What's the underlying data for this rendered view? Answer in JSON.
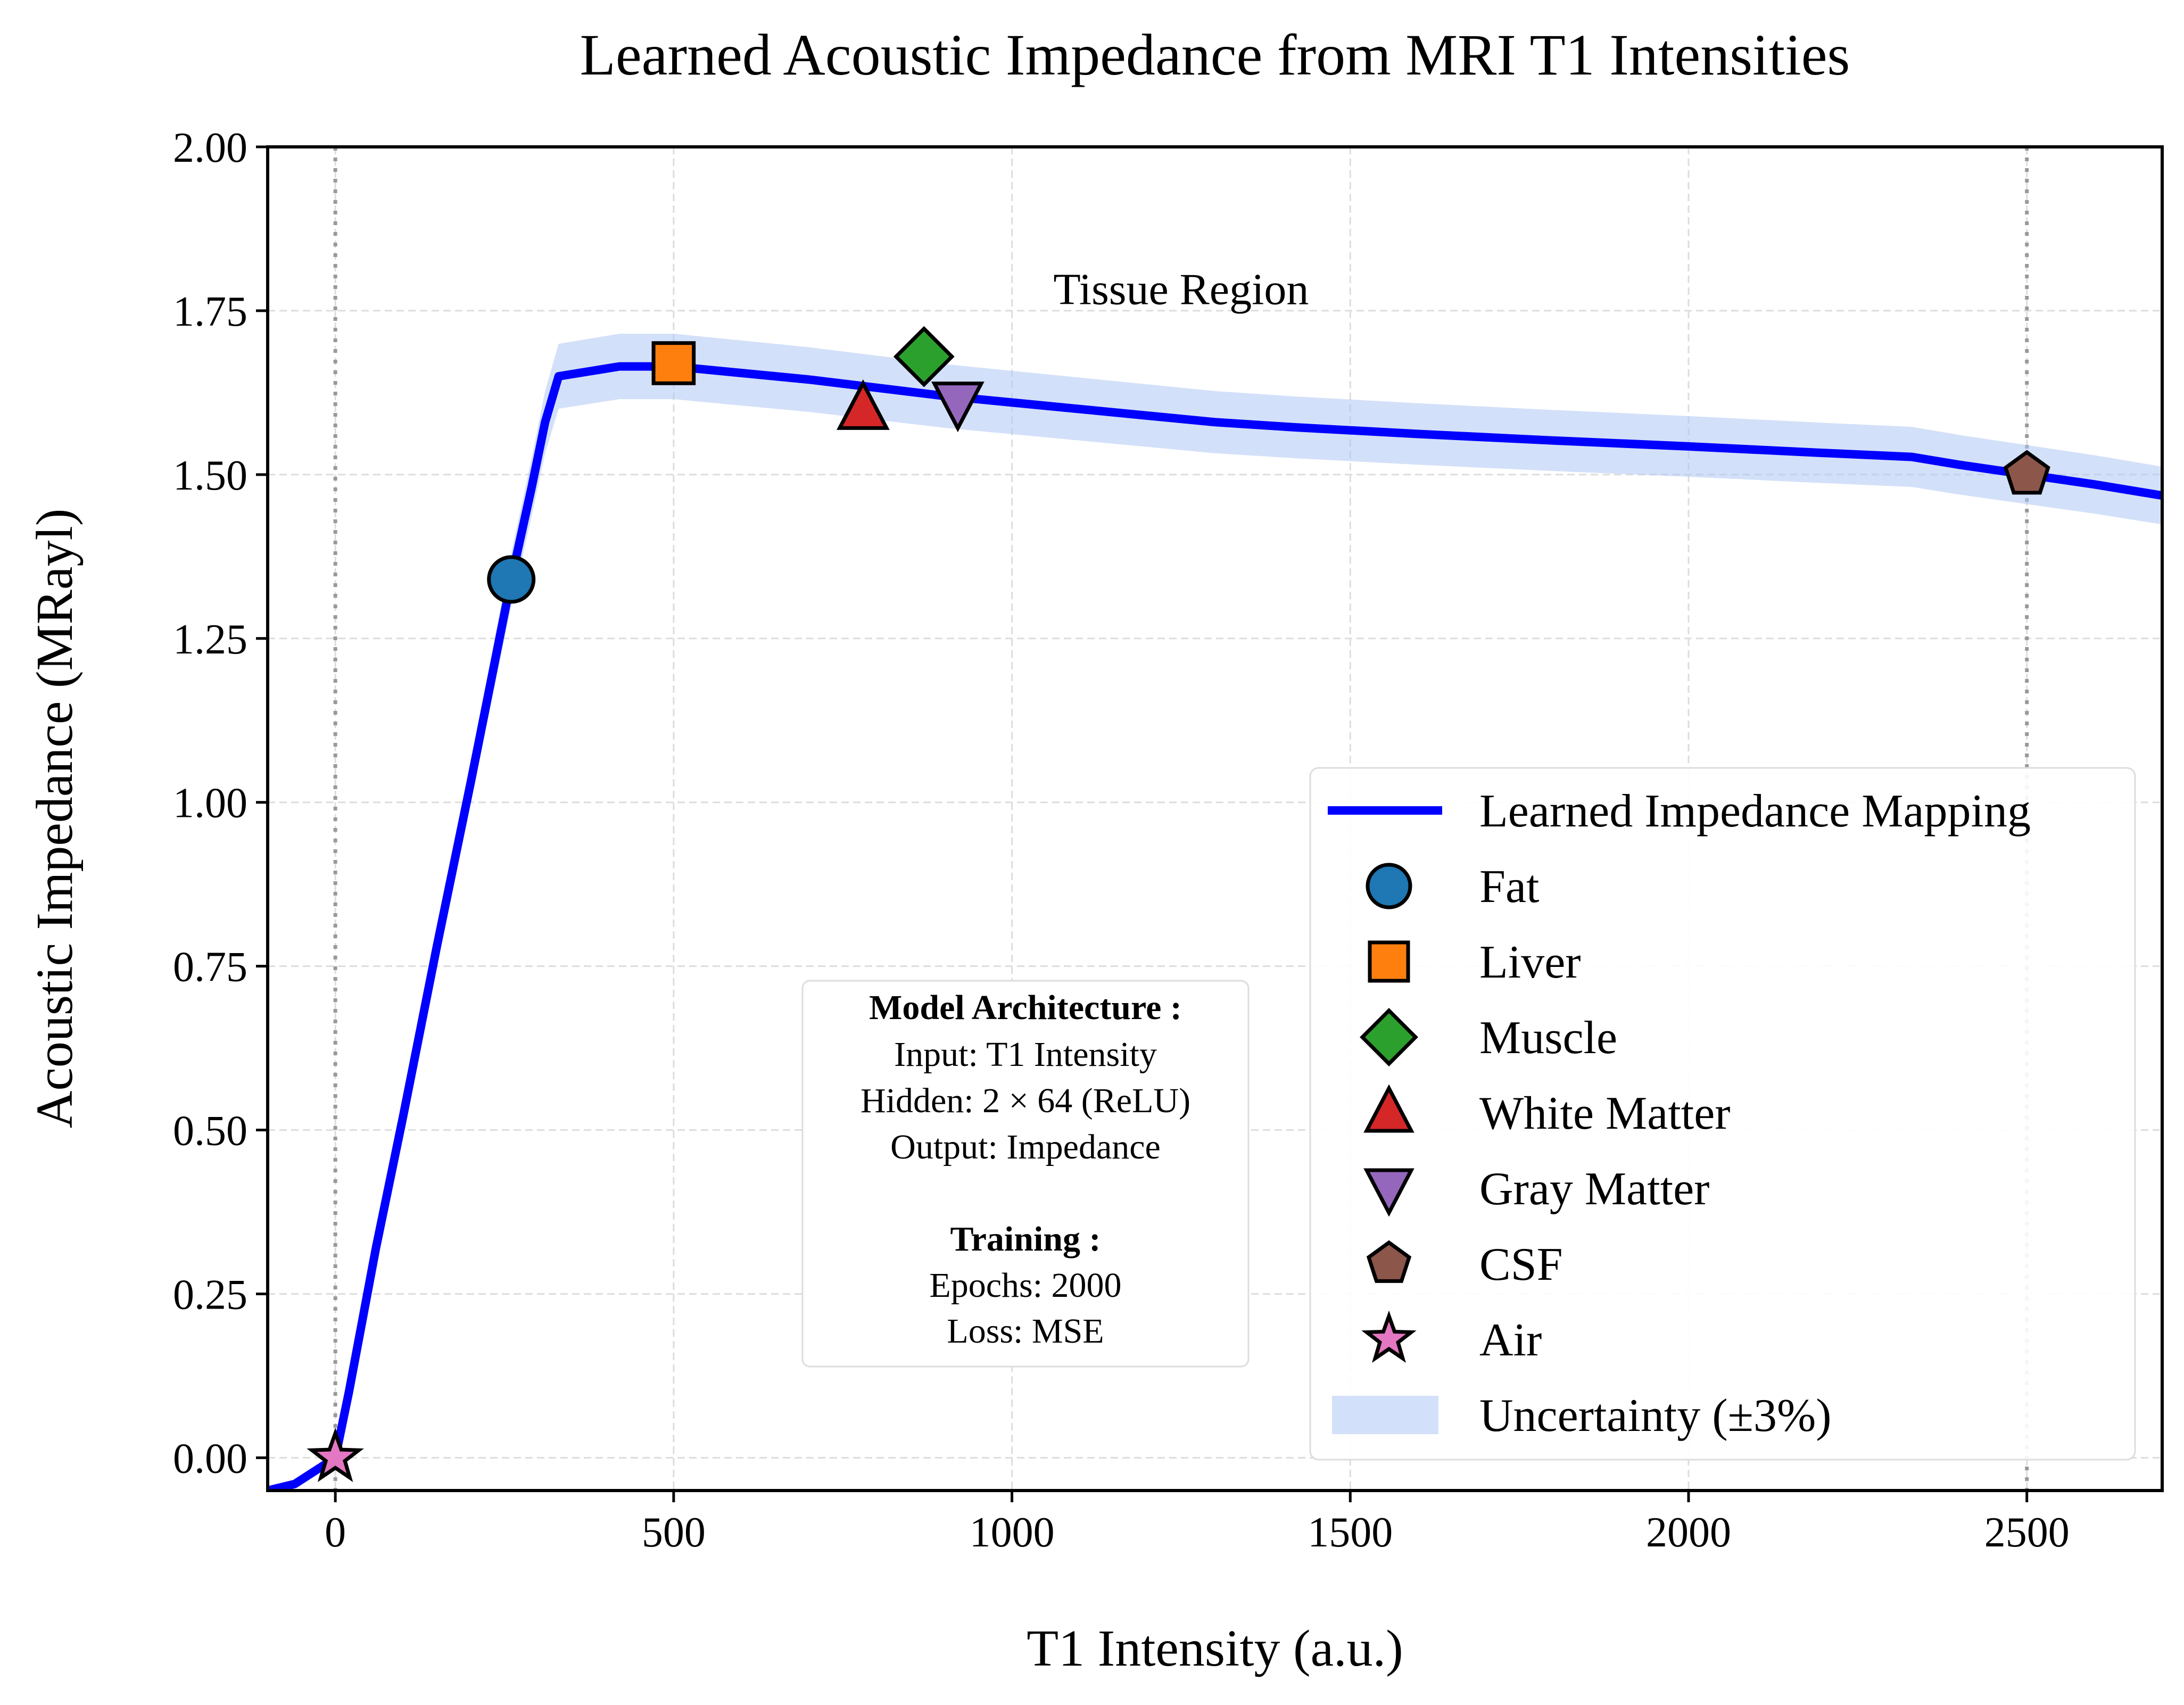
{
  "chart_data": {
    "type": "line",
    "title": "Learned Acoustic Impedance from MRI T1 Intensities",
    "xlabel": "T1 Intensity (a.u.)",
    "ylabel": "Acoustic Impedance (MRayl)",
    "xlim": [
      -100,
      2700
    ],
    "ylim": [
      -0.05,
      2.0
    ],
    "x_ticks": [
      0,
      500,
      1000,
      1500,
      2000,
      2500
    ],
    "y_ticks": [
      0.0,
      0.25,
      0.5,
      0.75,
      1.0,
      1.25,
      1.5,
      1.75,
      2.0
    ],
    "x_tick_labels": [
      "0",
      "500",
      "1000",
      "1500",
      "2000",
      "2500"
    ],
    "y_tick_labels": [
      "0.00",
      "0.25",
      "0.50",
      "0.75",
      "1.00",
      "1.25",
      "1.50",
      "1.75",
      "2.00"
    ],
    "grid": true,
    "vertical_reference_lines": [
      0,
      2500
    ],
    "mapping": {
      "name": "Learned Impedance Mapping",
      "color": "#0000ff",
      "points": [
        [
          -100,
          -0.05
        ],
        [
          -60,
          -0.04
        ],
        [
          -30,
          -0.02
        ],
        [
          0,
          0.0
        ],
        [
          20,
          0.1
        ],
        [
          60,
          0.32
        ],
        [
          100,
          0.52
        ],
        [
          150,
          0.78
        ],
        [
          200,
          1.03
        ],
        [
          260,
          1.34
        ],
        [
          290,
          1.48
        ],
        [
          310,
          1.58
        ],
        [
          330,
          1.65
        ],
        [
          420,
          1.665
        ],
        [
          500,
          1.665
        ],
        [
          700,
          1.645
        ],
        [
          900,
          1.62
        ],
        [
          1100,
          1.6
        ],
        [
          1300,
          1.58
        ],
        [
          1420,
          1.572
        ],
        [
          1600,
          1.562
        ],
        [
          1800,
          1.552
        ],
        [
          2000,
          1.543
        ],
        [
          2200,
          1.533
        ],
        [
          2330,
          1.527
        ],
        [
          2400,
          1.515
        ],
        [
          2500,
          1.5
        ],
        [
          2600,
          1.485
        ],
        [
          2700,
          1.468
        ]
      ]
    },
    "uncertainty": {
      "name": "Uncertainty (±3%)",
      "fraction": 0.03,
      "color": "#aec7f4"
    },
    "tissues": [
      {
        "name": "Fat",
        "x": 260,
        "y": 1.34,
        "marker": "circle",
        "color": "#1f77b4"
      },
      {
        "name": "Liver",
        "x": 500,
        "y": 1.67,
        "marker": "square",
        "color": "#ff7f0e"
      },
      {
        "name": "Muscle",
        "x": 870,
        "y": 1.68,
        "marker": "diamond",
        "color": "#2ca02c"
      },
      {
        "name": "White Matter",
        "x": 780,
        "y": 1.6,
        "marker": "triangle-up",
        "color": "#d62728"
      },
      {
        "name": "Gray Matter",
        "x": 920,
        "y": 1.61,
        "marker": "triangle-down",
        "color": "#9467bd"
      },
      {
        "name": "CSF",
        "x": 2500,
        "y": 1.5,
        "marker": "pentagon",
        "color": "#8c564b"
      },
      {
        "name": "Air",
        "x": 0,
        "y": 0.0,
        "marker": "star",
        "color": "#e377c2"
      }
    ],
    "annotations": [
      {
        "text": "Tissue Region",
        "x": 1250,
        "y": 1.76
      }
    ],
    "info_box": {
      "heading1": "Model Architecture :",
      "line1": "Input: T1 Intensity",
      "line2": "Hidden: 2 × 64 (ReLU)",
      "line3": "Output: Impedance",
      "heading2": "Training :",
      "line4": "Epochs: 2000",
      "line5": "Loss: MSE"
    },
    "legend_placement": "lower-right"
  }
}
